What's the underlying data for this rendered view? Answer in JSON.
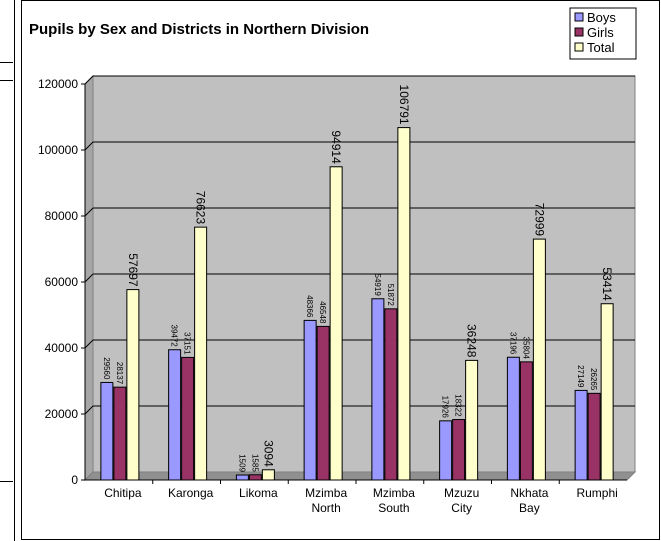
{
  "chart_data": {
    "type": "bar",
    "title": "Pupils by Sex and Districts in Northern Division",
    "categories": [
      [
        "Chitipa"
      ],
      [
        "Karonga"
      ],
      [
        "Likoma"
      ],
      [
        "Mzimba",
        "North"
      ],
      [
        "Mzimba",
        "South"
      ],
      [
        "Mzuzu",
        "City"
      ],
      [
        "Nkhata",
        "Bay"
      ],
      [
        "Rumphi"
      ]
    ],
    "series": [
      {
        "name": "Boys",
        "color": "#9999ff",
        "values": [
          29560,
          39472,
          1509,
          48366,
          54919,
          17926,
          37196,
          27149
        ]
      },
      {
        "name": "Girls",
        "color": "#993366",
        "values": [
          28137,
          37151,
          1585,
          46548,
          51872,
          18322,
          35804,
          26265
        ]
      },
      {
        "name": "Total",
        "color": "#ffffcc",
        "values": [
          57697,
          76623,
          3094,
          94914,
          106791,
          36248,
          72999,
          53414
        ]
      }
    ],
    "ylim": [
      0,
      120000
    ],
    "yticks": [
      0,
      20000,
      40000,
      60000,
      80000,
      100000,
      120000
    ],
    "grid": true,
    "plot_background": "#c0c0c0",
    "legend_position": "top-right",
    "xlabel": "",
    "ylabel": ""
  }
}
